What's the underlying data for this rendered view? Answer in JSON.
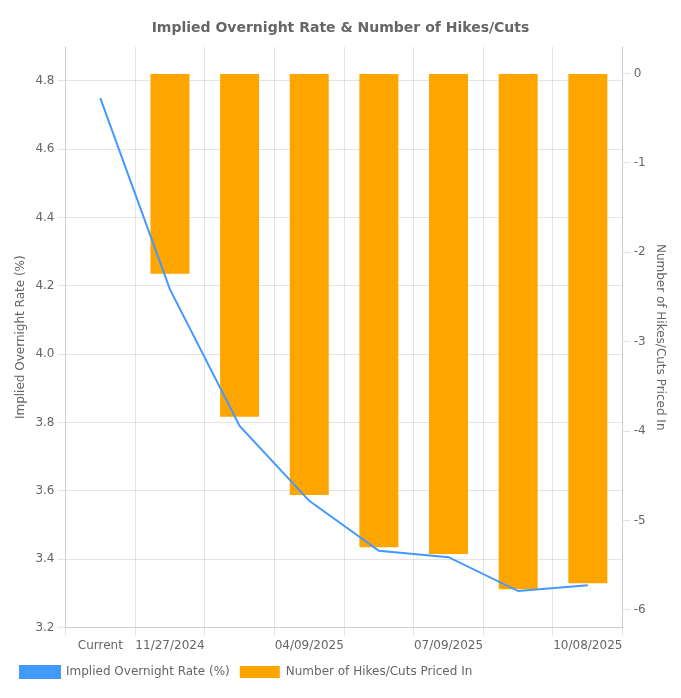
{
  "chart_data": {
    "type": "bar",
    "title": "Implied Overnight Rate & Number of Hikes/Cuts",
    "categories": [
      "Current",
      "11/27/2024",
      null,
      "04/09/2025",
      null,
      "07/09/2025",
      null,
      "10/08/2025"
    ],
    "series": [
      {
        "name": "Implied Overnight Rate (%)",
        "type": "line",
        "color": "#4499FF",
        "marker": "none",
        "values": [
          4.75,
          4.19,
          3.79,
          3.571,
          3.425,
          3.406,
          3.307,
          3.324
        ]
      },
      {
        "name": "Number of Hikes/Cuts Priced In",
        "type": "bar",
        "color": "#FFA500",
        "axis": "y2",
        "values": [
          null,
          -2.24,
          -3.841,
          -4.715,
          -5.301,
          -5.375,
          -5.771,
          -5.703
        ]
      }
    ],
    "ylabel": "Implied Overnight Rate (%)",
    "y2label": "Number of Hikes/Cuts Priced In",
    "ylim": [
      3.2,
      4.9
    ],
    "yticks": [
      3.2,
      3.4,
      3.6,
      3.8,
      {
        "value": 4,
        "label": "4.0"
      },
      4.2,
      4.4,
      4.6,
      4.8
    ],
    "y2lim": [
      -6.2,
      0.3
    ],
    "y2ticks": [
      0,
      -1,
      -2,
      -3,
      -4,
      -5,
      -6
    ],
    "grid": true,
    "legend": "lower left"
  }
}
